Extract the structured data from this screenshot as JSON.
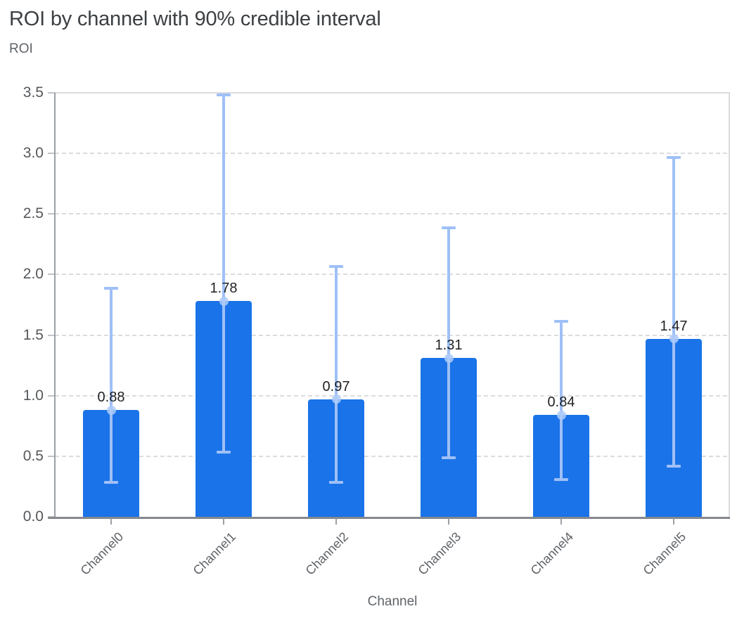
{
  "header": {
    "title": "ROI by channel with 90% credible interval",
    "y_axis_label": "ROI",
    "x_axis_label": "Channel"
  },
  "chart_data": {
    "type": "bar",
    "title": "ROI by channel with 90% credible interval",
    "xlabel": "Channel",
    "ylabel": "ROI",
    "ylim": [
      0,
      3.5
    ],
    "ytick_labels": [
      "0.0",
      "0.5",
      "1.0",
      "1.5",
      "2.0",
      "2.5",
      "3.0",
      "3.5"
    ],
    "grid": true,
    "legend_position": "none",
    "categories": [
      "Channel0",
      "Channel1",
      "Channel2",
      "Channel3",
      "Channel4",
      "Channel5"
    ],
    "series": [
      {
        "name": "ROI",
        "values": [
          0.88,
          1.78,
          0.97,
          1.31,
          0.84,
          1.47
        ],
        "data_labels": [
          "0.88",
          "1.78",
          "0.97",
          "1.31",
          "0.84",
          "1.47"
        ]
      }
    ],
    "error_bars": {
      "name": "90% credible interval",
      "lower": [
        0.28,
        0.53,
        0.28,
        0.48,
        0.3,
        0.41
      ],
      "upper": [
        1.89,
        3.49,
        2.07,
        2.39,
        1.62,
        2.97
      ]
    },
    "colors": {
      "bar": "#1a73e8",
      "error_bar": "#9fc0f7",
      "marker": "#aecbfa",
      "gridline": "#dadce0",
      "y_axis_line": "#9aa0a6",
      "x_axis_line": "#85898d",
      "title_text": "#3c4043",
      "axis_text": "#5f6368",
      "data_label_text": "#1f2023"
    }
  }
}
